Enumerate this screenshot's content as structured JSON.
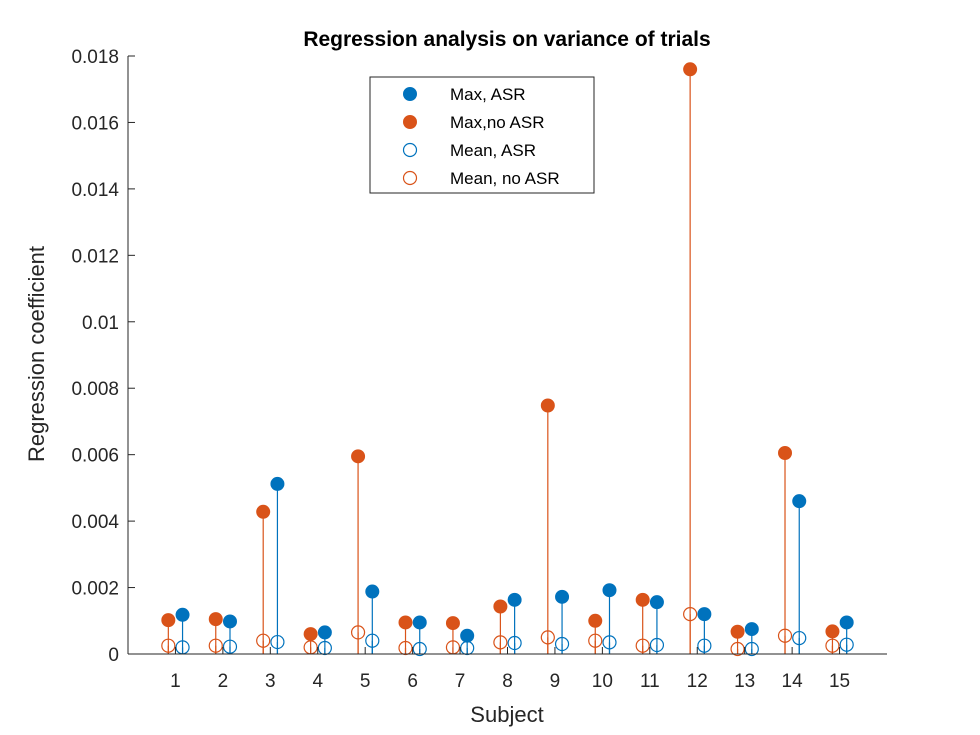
{
  "chart_data": {
    "type": "stem",
    "title": "Regression analysis on variance of trials",
    "xlabel": "Subject",
    "ylabel": "Regression coefficient",
    "ylim": [
      0,
      0.018
    ],
    "yticks": [
      0,
      0.002,
      0.004,
      0.006,
      0.008,
      0.01,
      0.012,
      0.014,
      0.016,
      0.018
    ],
    "ytick_labels": [
      "0",
      "0.002",
      "0.004",
      "0.006",
      "0.008",
      "0.01",
      "0.012",
      "0.014",
      "0.016",
      "0.018"
    ],
    "categories": [
      "1",
      "2",
      "3",
      "4",
      "5",
      "6",
      "7",
      "8",
      "9",
      "10",
      "11",
      "12",
      "13",
      "14",
      "15"
    ],
    "legend_position": "top-center",
    "grid": false,
    "series": [
      {
        "name": "Max, ASR",
        "color": "#0072BD",
        "marker": "filled-circle",
        "offset": 0.15,
        "values": [
          0.00118,
          0.00098,
          0.00512,
          0.00065,
          0.00188,
          0.00095,
          0.00055,
          0.00163,
          0.00172,
          0.00192,
          0.00156,
          0.0012,
          0.00075,
          0.0046,
          0.00095
        ]
      },
      {
        "name": "Max,no ASR",
        "color": "#D95319",
        "marker": "filled-circle",
        "offset": -0.15,
        "values": [
          0.00102,
          0.00105,
          0.00428,
          0.0006,
          0.00595,
          0.00095,
          0.00093,
          0.00143,
          0.00748,
          0.001,
          0.00163,
          0.0176,
          0.00067,
          0.00605,
          0.00068
        ]
      },
      {
        "name": "Mean, ASR",
        "color": "#0072BD",
        "marker": "open-circle",
        "offset": 0.15,
        "values": [
          0.0002,
          0.00022,
          0.00036,
          0.00018,
          0.0004,
          0.00015,
          0.00018,
          0.00033,
          0.0003,
          0.00035,
          0.00027,
          0.00025,
          0.00015,
          0.00048,
          0.00028
        ]
      },
      {
        "name": "Mean, no ASR",
        "color": "#D95319",
        "marker": "open-circle",
        "offset": -0.15,
        "values": [
          0.00025,
          0.00025,
          0.0004,
          0.0002,
          0.00065,
          0.00018,
          0.0002,
          0.00035,
          0.0005,
          0.0004,
          0.00025,
          0.0012,
          0.00015,
          0.00055,
          0.00025
        ]
      }
    ]
  }
}
